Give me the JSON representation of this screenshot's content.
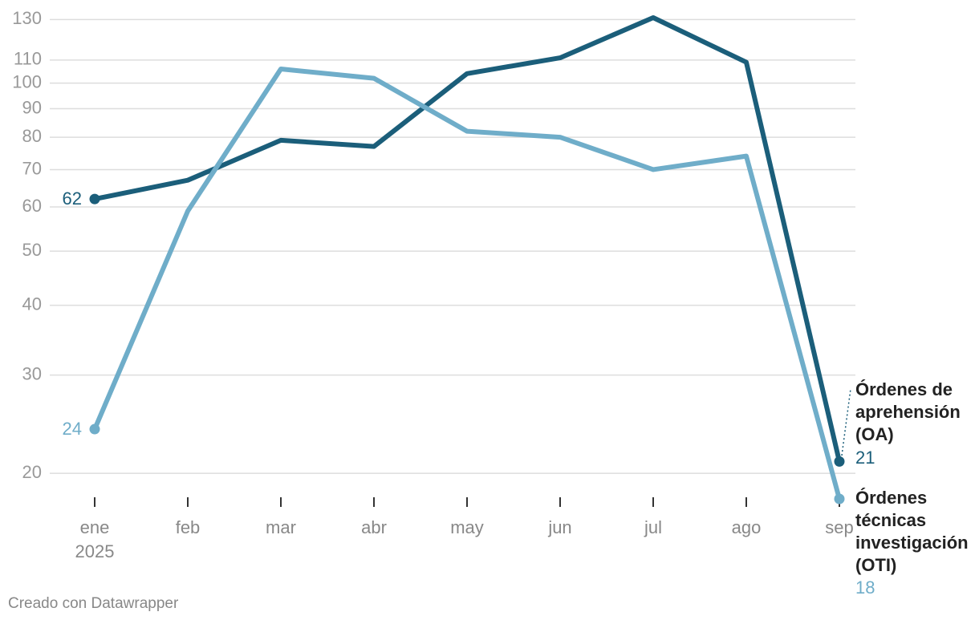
{
  "chart_data": {
    "type": "line",
    "categories": [
      "ene\n2025",
      "feb",
      "mar",
      "abr",
      "may",
      "jun",
      "jul",
      "ago",
      "sep"
    ],
    "series": [
      {
        "name": "Órdenes de aprehensión (OA)",
        "color": "#1b5e7a",
        "values": [
          62,
          67,
          79,
          77,
          104,
          111,
          131,
          109,
          21
        ]
      },
      {
        "name": "Órdenes técnicas investigación (OTI)",
        "color": "#6fadc9",
        "values": [
          24,
          59,
          106,
          102,
          82,
          80,
          70,
          74,
          18
        ]
      }
    ],
    "ylim": [
      18,
      131
    ],
    "log_y": true,
    "grid": true,
    "yticks": [
      20,
      30,
      40,
      50,
      60,
      70,
      80,
      90,
      100,
      110,
      130
    ],
    "footer": "Creado con Datawrapper"
  }
}
